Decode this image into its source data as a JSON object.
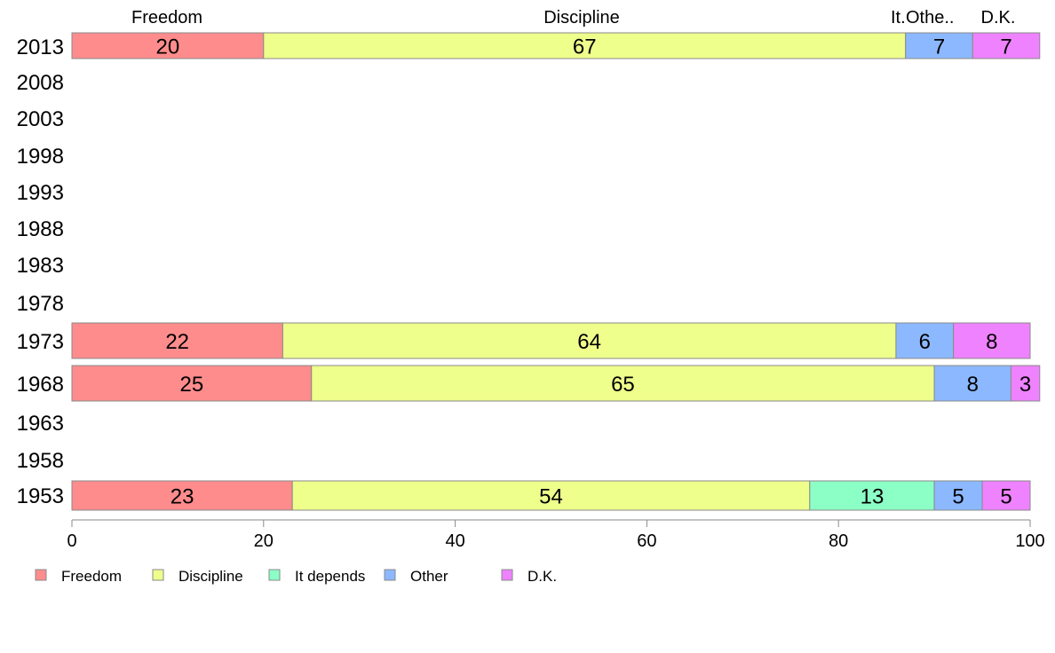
{
  "chart_data": {
    "type": "bar",
    "orientation": "horizontal",
    "stacked": true,
    "title": "",
    "xlabel": "",
    "ylabel": "",
    "xlim": [
      0,
      100
    ],
    "x_ticks": [
      "0",
      "20",
      "40",
      "60",
      "80",
      "100"
    ],
    "categories": [
      "2013",
      "2008",
      "2003",
      "1998",
      "1993",
      "1988",
      "1983",
      "1978",
      "1973",
      "1968",
      "1963",
      "1958",
      "1953"
    ],
    "series": [
      {
        "name": "Freedom",
        "color": "#ff8c8c",
        "values": [
          20,
          null,
          null,
          null,
          null,
          null,
          null,
          null,
          22,
          25,
          null,
          null,
          23
        ],
        "labels": [
          "20",
          "",
          "",
          "",
          "",
          "",
          "",
          "",
          "22",
          "25",
          "",
          "",
          "23"
        ]
      },
      {
        "name": "Discipline",
        "color": "#eeff8c",
        "values": [
          67,
          null,
          null,
          null,
          null,
          null,
          null,
          null,
          64,
          65,
          null,
          null,
          54
        ],
        "labels": [
          "67",
          "",
          "",
          "",
          "",
          "",
          "",
          "",
          "64",
          "65",
          "",
          "",
          "54"
        ]
      },
      {
        "name": "It depends",
        "color": "#8cffc6",
        "values": [
          0,
          null,
          null,
          null,
          null,
          null,
          null,
          null,
          0,
          0,
          null,
          null,
          13
        ],
        "labels": [
          "",
          "",
          "",
          "",
          "",
          "",
          "",
          "",
          "",
          "",
          "",
          "",
          "13"
        ]
      },
      {
        "name": "Other",
        "color": "#8cb8ff",
        "values": [
          7,
          null,
          null,
          null,
          null,
          null,
          null,
          null,
          6,
          8,
          null,
          null,
          5
        ],
        "labels": [
          "7",
          "",
          "",
          "",
          "",
          "",
          "",
          "",
          "6",
          "8",
          "",
          "",
          "5"
        ]
      },
      {
        "name": "D.K.",
        "color": "#ee82ff",
        "values": [
          7,
          null,
          null,
          null,
          null,
          null,
          null,
          null,
          8,
          3,
          null,
          null,
          5
        ],
        "labels": [
          "7",
          "",
          "",
          "",
          "",
          "",
          "",
          "",
          "8",
          "3",
          "",
          "",
          "5"
        ]
      }
    ],
    "top_labels": [
      "Freedom",
      "Discipline",
      "It.",
      "Othe..",
      "D.K."
    ],
    "legend": {
      "placement": "bottom",
      "entries": [
        "Freedom",
        "Discipline",
        "It depends",
        "Other",
        "D.K."
      ]
    },
    "grid": false
  }
}
